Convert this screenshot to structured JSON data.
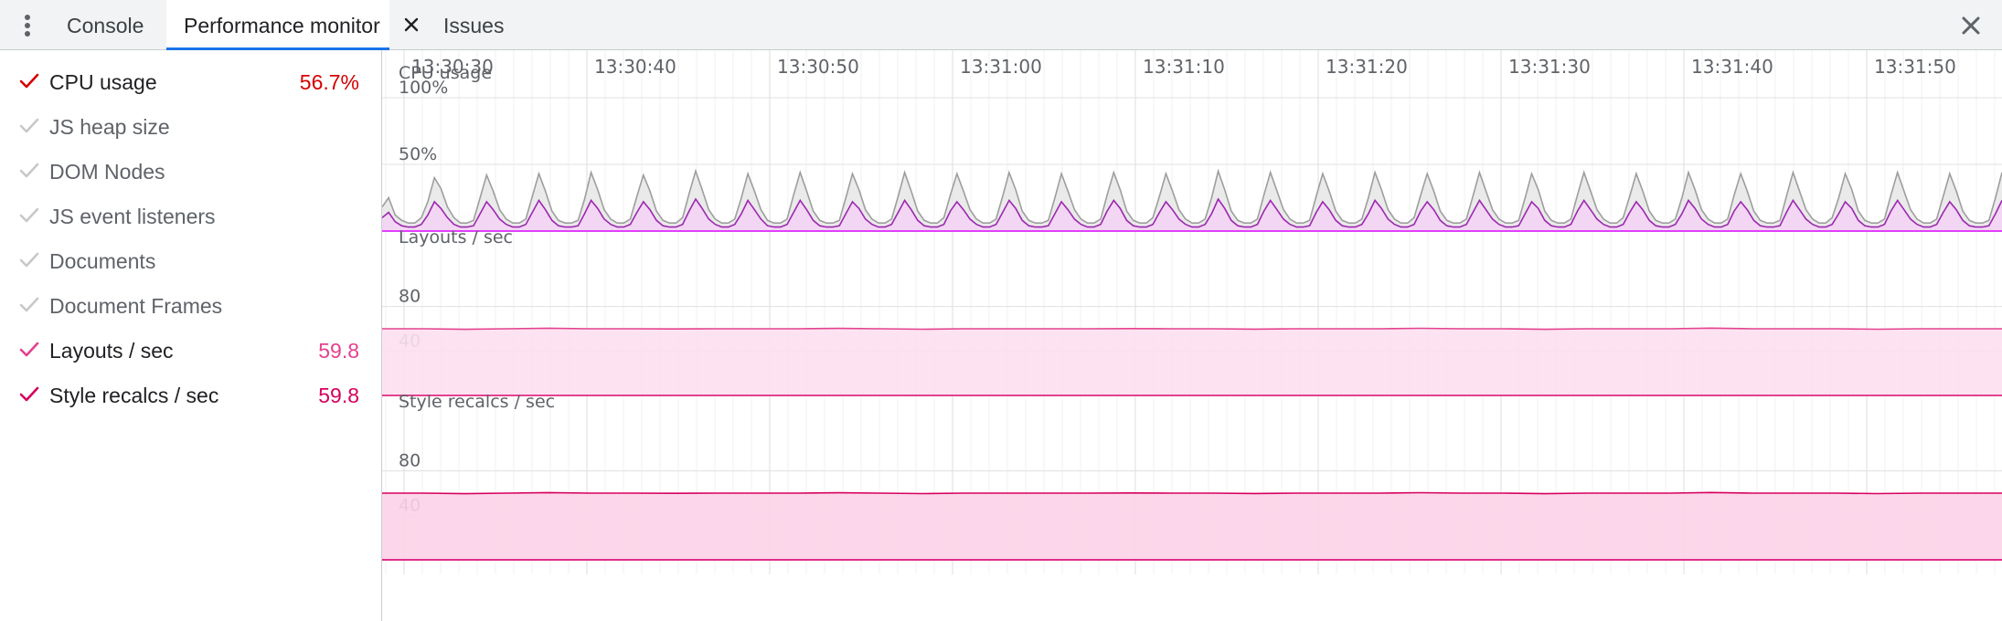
{
  "tabs": [
    {
      "label": "Console"
    },
    {
      "label": "Performance monitor",
      "active": true
    },
    {
      "label": "Issues"
    }
  ],
  "metrics": [
    {
      "label": "CPU usage",
      "value": "56.7%",
      "checked": true,
      "color": "#d50000"
    },
    {
      "label": "JS heap size",
      "value": "",
      "checked": false,
      "color": "#cccccc"
    },
    {
      "label": "DOM Nodes",
      "value": "",
      "checked": false,
      "color": "#cccccc"
    },
    {
      "label": "JS event listeners",
      "value": "",
      "checked": false,
      "color": "#cccccc"
    },
    {
      "label": "Documents",
      "value": "",
      "checked": false,
      "color": "#cccccc"
    },
    {
      "label": "Document Frames",
      "value": "",
      "checked": false,
      "color": "#cccccc"
    },
    {
      "label": "Layouts / sec",
      "value": "59.8",
      "checked": true,
      "color": "#e4418f"
    },
    {
      "label": "Style recalcs / sec",
      "value": "59.8",
      "checked": true,
      "color": "#d6005d"
    }
  ],
  "timeline": {
    "ticks": [
      "13:30:30",
      "13:30:40",
      "13:30:50",
      "13:31:00",
      "13:31:10",
      "13:31:20",
      "13:31:30",
      "13:31:40",
      "13:31:50"
    ]
  },
  "chart_data": [
    {
      "type": "area",
      "title": "CPU usage",
      "y_ticks": [
        "100%",
        "50%"
      ],
      "ylim": [
        0,
        100
      ],
      "series": [
        {
          "name": "",
          "color": "#9e9e9e",
          "values": [
            18,
            25,
            12,
            8,
            6,
            6,
            10,
            22,
            40,
            32,
            18,
            10,
            6,
            6,
            8,
            25,
            42,
            30,
            16,
            9,
            6,
            6,
            9,
            26,
            43,
            30,
            15,
            8,
            6,
            6,
            8,
            24,
            44,
            31,
            16,
            9,
            6,
            6,
            9,
            26,
            42,
            30,
            15,
            8,
            6,
            6,
            10,
            28,
            45,
            31,
            16,
            9,
            6,
            6,
            9,
            25,
            43,
            30,
            16,
            8,
            6,
            6,
            9,
            27,
            44,
            30,
            15,
            8,
            6,
            6,
            8,
            25,
            43,
            31,
            16,
            9,
            6,
            6,
            9,
            26,
            44,
            30,
            15,
            8,
            6,
            6,
            10,
            27,
            43,
            30,
            16,
            9,
            6,
            6,
            9,
            26,
            44,
            31,
            15,
            8,
            6,
            6,
            8,
            25,
            43,
            30,
            16,
            9,
            6,
            6,
            9,
            27,
            44,
            31,
            15,
            8,
            6,
            6,
            10,
            26,
            43,
            30,
            16,
            9,
            6,
            6,
            9,
            25,
            45,
            31,
            15,
            8,
            6,
            6,
            9,
            27,
            44,
            30,
            16,
            9,
            6,
            6,
            8,
            26,
            43,
            30,
            15,
            8,
            6,
            6,
            9,
            25,
            44,
            31,
            16,
            9,
            6,
            6,
            10,
            27,
            43,
            30,
            15,
            8,
            6,
            6,
            9,
            26,
            44,
            30,
            16,
            9,
            6,
            6,
            8,
            25,
            43,
            31,
            15,
            8,
            6,
            6,
            9,
            27,
            44,
            30,
            16,
            9,
            6,
            6,
            10,
            26,
            43,
            30,
            15,
            8,
            6,
            6,
            9,
            25,
            44,
            31,
            16,
            9,
            6,
            6,
            9,
            27,
            43,
            30,
            15,
            8,
            6,
            6,
            8,
            26,
            44,
            30,
            16,
            9,
            6,
            6,
            10,
            25,
            43,
            31,
            15,
            8,
            6,
            6,
            9,
            27,
            44,
            30,
            16,
            9,
            6,
            6,
            9,
            26,
            43,
            30,
            15,
            8,
            6,
            6,
            8,
            25,
            44
          ]
        },
        {
          "name": "",
          "color": "#9c27b0",
          "values": [
            10,
            14,
            7,
            4,
            3,
            3,
            5,
            12,
            22,
            17,
            10,
            5,
            3,
            3,
            4,
            13,
            22,
            16,
            9,
            5,
            3,
            3,
            5,
            14,
            23,
            16,
            8,
            4,
            3,
            3,
            4,
            13,
            23,
            17,
            9,
            5,
            3,
            3,
            5,
            14,
            22,
            16,
            8,
            4,
            3,
            3,
            5,
            15,
            24,
            17,
            9,
            5,
            3,
            3,
            5,
            13,
            23,
            16,
            9,
            4,
            3,
            3,
            5,
            14,
            23,
            16,
            8,
            4,
            3,
            3,
            4,
            13,
            22,
            17,
            9,
            5,
            3,
            3,
            5,
            14,
            23,
            16,
            8,
            4,
            3,
            3,
            5,
            15,
            22,
            16,
            9,
            5,
            3,
            3,
            5,
            14,
            23,
            17,
            8,
            4,
            3,
            3,
            4,
            13,
            22,
            16,
            9,
            5,
            3,
            3,
            5,
            15,
            23,
            17,
            8,
            4,
            3,
            3,
            5,
            14,
            22,
            16,
            9,
            5,
            3,
            3,
            5,
            13,
            24,
            17,
            8,
            4,
            3,
            3,
            5,
            15,
            23,
            16,
            9,
            5,
            3,
            3,
            4,
            14,
            22,
            16,
            8,
            4,
            3,
            3,
            5,
            13,
            23,
            17,
            9,
            5,
            3,
            3,
            5,
            15,
            22,
            16,
            8,
            4,
            3,
            3,
            5,
            14,
            23,
            16,
            9,
            5,
            3,
            3,
            4,
            13,
            22,
            17,
            8,
            4,
            3,
            3,
            5,
            15,
            23,
            16,
            9,
            5,
            3,
            3,
            5,
            14,
            22,
            16,
            8,
            4,
            3,
            3,
            5,
            13,
            23,
            17,
            9,
            5,
            3,
            3,
            5,
            15,
            22,
            16,
            8,
            4,
            3,
            3,
            4,
            14,
            23,
            16,
            9,
            5,
            3,
            3,
            5,
            13,
            22,
            17,
            8,
            4,
            3,
            3,
            5,
            15,
            23,
            16,
            9,
            5,
            3,
            3,
            5,
            14,
            22,
            16,
            8,
            4,
            3,
            3,
            4,
            13,
            23
          ]
        }
      ]
    },
    {
      "type": "area",
      "title": "Layouts / sec",
      "y_ticks": [
        "80",
        "40"
      ],
      "ylim": [
        0,
        120
      ],
      "series": [
        {
          "name": "",
          "color": "#e4418f",
          "values": [
            60,
            60,
            59.5,
            60,
            60.5,
            60,
            60,
            59.8,
            60,
            60,
            60,
            60.3,
            60,
            59.6,
            60,
            60,
            60,
            60,
            60.2,
            60,
            60,
            59.7,
            60,
            60,
            60,
            60.4,
            60,
            60,
            59.5,
            60,
            60,
            60,
            60.6,
            60,
            60,
            60,
            59.6,
            60,
            60,
            60
          ]
        }
      ]
    },
    {
      "type": "area",
      "title": "Style recalcs / sec",
      "y_ticks": [
        "80",
        "40"
      ],
      "ylim": [
        0,
        120
      ],
      "series": [
        {
          "name": "",
          "color": "#d6005d",
          "values": [
            60,
            60,
            59.5,
            60,
            60.5,
            60,
            60,
            59.8,
            60,
            60,
            60,
            60.3,
            60,
            59.6,
            60,
            60,
            60,
            60,
            60.2,
            60,
            60,
            59.7,
            60,
            60,
            60,
            60.4,
            60,
            60,
            59.5,
            60,
            60,
            60,
            60.6,
            60,
            60,
            60,
            59.6,
            60,
            60,
            60
          ]
        }
      ]
    }
  ]
}
